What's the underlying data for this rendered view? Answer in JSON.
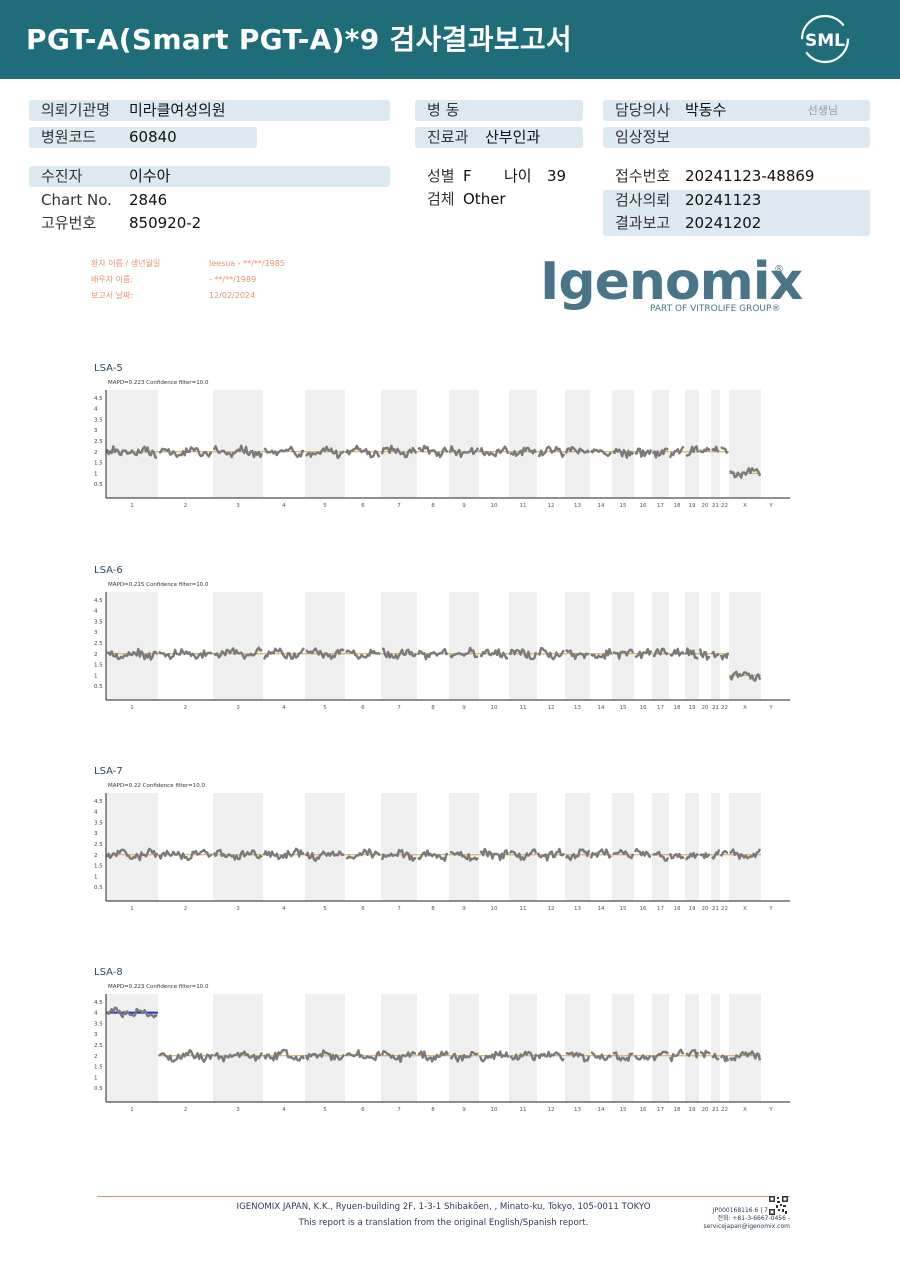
{
  "header": {
    "title": "PGT-A(Smart  PGT-A)*9 검사결과보고서",
    "logo_text": "SML",
    "bg_color": "#1e6d78"
  },
  "info": {
    "institution_label": "의뢰기관명",
    "institution_value": "미라클여성의원",
    "hospital_code_label": "병원코드",
    "hospital_code_value": "60840",
    "ward_label": "병  동",
    "ward_value": "",
    "department_label": "진료과",
    "department_value": "산부인과",
    "doctor_label": "담당의사",
    "doctor_value": "박동수",
    "doctor_suffix": "선생님",
    "clinical_label": "임상정보",
    "clinical_value": "",
    "patient_label": "수진자",
    "patient_value": "이수아",
    "chart_label": "Chart No.",
    "chart_value": "2846",
    "id_label": "고유번호",
    "id_value": "850920-2",
    "sex_label": "성별",
    "sex_value": "F",
    "age_label": "나이",
    "age_value": "39",
    "specimen_label": "검체",
    "specimen_value": "Other",
    "receipt_label": "접수번호",
    "receipt_value": "20241123-48869",
    "request_label": "검사의뢰",
    "request_value": "20241123",
    "report_label": "결과보고",
    "report_value": "20241202"
  },
  "lab_info": {
    "patient_key": "환자 이름 / 생년월일",
    "patient_val": "leesua - **/**/1985",
    "partner_key": "배우자 이름:",
    "partner_val": " - **/**/1989",
    "report_key": "보고서 날짜:",
    "report_val": "12/02/2024"
  },
  "igenomix": {
    "word": "Igenomix",
    "reg": "®",
    "tagline": "PART OF VITROLIFE GROUP®",
    "color": "#4a7488"
  },
  "chart_data": [
    {
      "type": "line",
      "title": "LSA-5",
      "subtitle": "MAPD=0.223 Confidence filter=10.0",
      "y_ticks": [
        "4.5",
        "4",
        "3.5",
        "3",
        "2.5",
        "2",
        "1.5",
        "1",
        "0.5"
      ],
      "categories": [
        "1",
        "2",
        "3",
        "4",
        "5",
        "6",
        "7",
        "8",
        "9",
        "10",
        "11",
        "12",
        "13",
        "14",
        "15",
        "16",
        "17",
        "18",
        "19",
        "20",
        "21",
        "22",
        "X",
        "Y"
      ],
      "copy_number": [
        2,
        2,
        2,
        2,
        2,
        2,
        2,
        2,
        2,
        2,
        2,
        2,
        2,
        2,
        2,
        2,
        2,
        2,
        2,
        2,
        2,
        2,
        1,
        null
      ],
      "reference": [
        2,
        2,
        2,
        2,
        2,
        2,
        2,
        2,
        2,
        2,
        2,
        2,
        2,
        2,
        2,
        2,
        2,
        2,
        2,
        2,
        2,
        2,
        1,
        null
      ]
    },
    {
      "type": "line",
      "title": "LSA-6",
      "subtitle": "MAPD=0.215 Confidence filter=10.0",
      "y_ticks": [
        "4.5",
        "4",
        "3.5",
        "3",
        "2.5",
        "2",
        "1.5",
        "1",
        "0.5"
      ],
      "categories": [
        "1",
        "2",
        "3",
        "4",
        "5",
        "6",
        "7",
        "8",
        "9",
        "10",
        "11",
        "12",
        "13",
        "14",
        "15",
        "16",
        "17",
        "18",
        "19",
        "20",
        "21",
        "22",
        "X",
        "Y"
      ],
      "copy_number": [
        2,
        2,
        2,
        2,
        2,
        2,
        2,
        2,
        2,
        2,
        2,
        2,
        2,
        2,
        2,
        2,
        2,
        2,
        2,
        2,
        2,
        2,
        1,
        null
      ],
      "reference": [
        2,
        2,
        2,
        2,
        2,
        2,
        2,
        2,
        2,
        2,
        2,
        2,
        2,
        2,
        2,
        2,
        2,
        2,
        2,
        2,
        2,
        2,
        1,
        null
      ]
    },
    {
      "type": "line",
      "title": "LSA-7",
      "subtitle": "MAPD=0.22 Confidence filter=10.0",
      "y_ticks": [
        "4.5",
        "4",
        "3.5",
        "3",
        "2.5",
        "2",
        "1.5",
        "1",
        "0.5"
      ],
      "categories": [
        "1",
        "2",
        "3",
        "4",
        "5",
        "6",
        "7",
        "8",
        "9",
        "10",
        "11",
        "12",
        "13",
        "14",
        "15",
        "16",
        "17",
        "18",
        "19",
        "20",
        "21",
        "22",
        "X",
        "Y"
      ],
      "copy_number": [
        2,
        2,
        2,
        2,
        2,
        2,
        2,
        2,
        2,
        2,
        2,
        2,
        2,
        2,
        2,
        2,
        2,
        2,
        2,
        2,
        2,
        2,
        2,
        null
      ],
      "reference": [
        2,
        2,
        2,
        2,
        2,
        2,
        2,
        2,
        2,
        2,
        2,
        2,
        2,
        2,
        2,
        2,
        2,
        2,
        2,
        2,
        2,
        2,
        2,
        null
      ]
    },
    {
      "type": "line",
      "title": "LSA-8",
      "subtitle": "MAPD=0.223 Confidence filter=10.0",
      "y_ticks": [
        "4.5",
        "4",
        "3.5",
        "3",
        "2.5",
        "2",
        "1.5",
        "1",
        "0.5"
      ],
      "categories": [
        "1",
        "2",
        "3",
        "4",
        "5",
        "6",
        "7",
        "8",
        "9",
        "10",
        "11",
        "12",
        "13",
        "14",
        "15",
        "16",
        "17",
        "18",
        "19",
        "20",
        "21",
        "22",
        "X",
        "Y"
      ],
      "copy_number": [
        4,
        2,
        2,
        2,
        2,
        2,
        2,
        2,
        2,
        2,
        2,
        2,
        2,
        2,
        2,
        2,
        2,
        2,
        2,
        2,
        2,
        2,
        2,
        null
      ],
      "reference": [
        4,
        2,
        2,
        2,
        2,
        2,
        2,
        2,
        2,
        2,
        2,
        2,
        2,
        2,
        2,
        2,
        2,
        2,
        2,
        2,
        2,
        2,
        2,
        null
      ]
    }
  ],
  "footer": {
    "line1": "IGENOMIX JAPAN, K.K., Ryuen-building 2F, 1-3-1 Shibakōen, , Minato-ku, Tokyo, 105-0011 TOKYO",
    "line2": "This report is a translation from the original English/Spanish report.",
    "doc_id": "JP000168116    6 | 7",
    "phone": "전화: +81-3-6667-0456 -",
    "email": "servicejapan@igenomix.com"
  }
}
